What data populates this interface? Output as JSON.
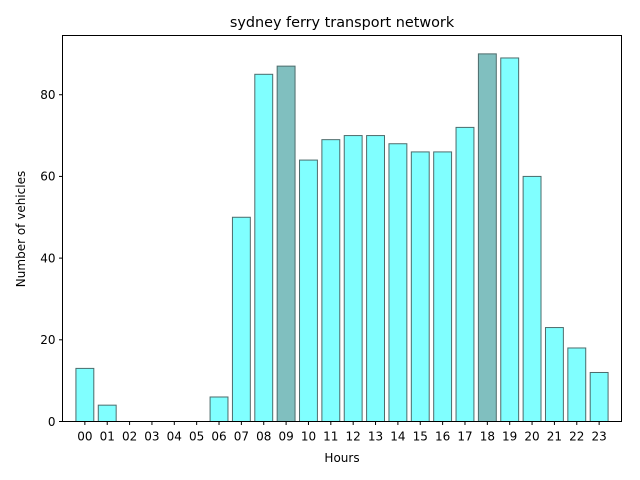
{
  "chart_data": {
    "type": "bar",
    "title": "sydney ferry transport network",
    "xlabel": "Hours",
    "ylabel": "Number of vehicles",
    "ylim": [
      0,
      94.5
    ],
    "yticks": [
      0,
      20,
      40,
      60,
      80
    ],
    "categories": [
      "00",
      "01",
      "02",
      "03",
      "04",
      "05",
      "06",
      "07",
      "08",
      "09",
      "10",
      "11",
      "12",
      "13",
      "14",
      "15",
      "16",
      "17",
      "18",
      "19",
      "20",
      "21",
      "22",
      "23"
    ],
    "values": [
      13,
      4,
      0,
      0,
      0,
      0,
      6,
      50,
      85,
      87,
      64,
      69,
      70,
      70,
      68,
      66,
      66,
      72,
      90,
      89,
      60,
      23,
      18,
      12
    ],
    "highlighted": [
      "09",
      "18"
    ],
    "colors": {
      "bar": "#80ffff",
      "highlight": "#80bfbf",
      "bar_edge": "#4d6b6b"
    },
    "grid": false,
    "legend": "none"
  }
}
